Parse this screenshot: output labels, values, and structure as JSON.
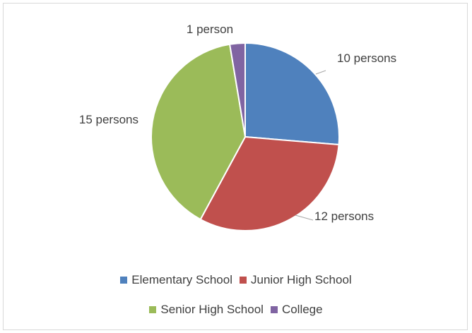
{
  "chart_data": {
    "type": "pie",
    "title": "",
    "categories": [
      "Elementary School",
      "Junior High School",
      "Senior High School",
      "College"
    ],
    "values": [
      10,
      12,
      15,
      1
    ],
    "data_labels": [
      "10 persons",
      "12 persons",
      "15 persons",
      "1 person"
    ],
    "colors": [
      "#4f81bd",
      "#c0504d",
      "#9bbb59",
      "#8064a2"
    ],
    "legend_position": "bottom",
    "start_angle_deg": 0,
    "direction": "clockwise"
  }
}
